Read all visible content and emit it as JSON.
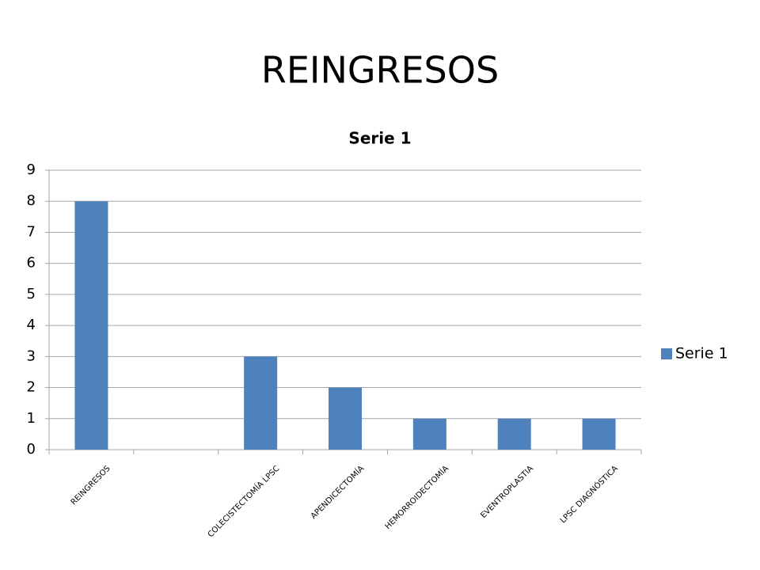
{
  "title": "REINGRESOS",
  "chart_data": {
    "type": "bar",
    "title": "Serie 1",
    "categories": [
      "REINGRESOS",
      null,
      "COLECISTECTOMÍA LPSC",
      "APENDICECTOMÍA",
      "HEMORROIDECTOMÍA",
      "EVENTROPLASTIA",
      "LPSC DIAGNÓSTICA"
    ],
    "series": [
      {
        "name": "Serie 1",
        "color": "#4f81bd",
        "values": [
          8,
          null,
          3,
          2,
          1,
          1,
          1
        ]
      }
    ],
    "ylim": [
      0,
      9
    ],
    "yticks": [
      0,
      1,
      2,
      3,
      4,
      5,
      6,
      7,
      8,
      9
    ],
    "grid": true,
    "legend": "right"
  }
}
